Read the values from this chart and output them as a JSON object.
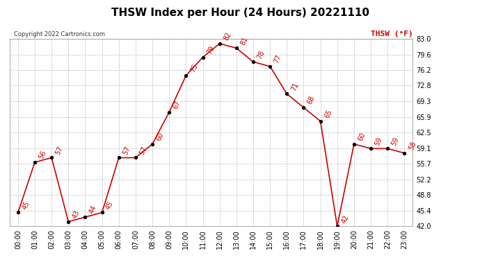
{
  "title": "THSW Index per Hour (24 Hours) 20221110",
  "copyright": "Copyright 2022 Cartronics.com",
  "legend_label": "THSW (°F)",
  "hours": [
    "00:00",
    "01:00",
    "02:00",
    "03:00",
    "04:00",
    "05:00",
    "06:00",
    "07:00",
    "08:00",
    "09:00",
    "10:00",
    "11:00",
    "12:00",
    "13:00",
    "14:00",
    "15:00",
    "16:00",
    "17:00",
    "18:00",
    "19:00",
    "20:00",
    "21:00",
    "22:00",
    "23:00"
  ],
  "values": [
    45,
    56,
    57,
    43,
    44,
    45,
    57,
    57,
    60,
    67,
    75,
    79,
    82,
    81,
    78,
    77,
    71,
    68,
    65,
    42,
    60,
    59,
    59,
    58
  ],
  "line_color": "#cc0000",
  "marker_color": "#000000",
  "grid_color": "#bbbbbb",
  "bg_color": "#ffffff",
  "ylim_min": 42.0,
  "ylim_max": 83.0,
  "yticks": [
    42.0,
    45.4,
    48.8,
    52.2,
    55.7,
    59.1,
    62.5,
    65.9,
    69.3,
    72.8,
    76.2,
    79.6,
    83.0
  ],
  "title_fontsize": 11,
  "label_fontsize": 7,
  "tick_fontsize": 7,
  "copyright_fontsize": 6,
  "legend_fontsize": 8
}
